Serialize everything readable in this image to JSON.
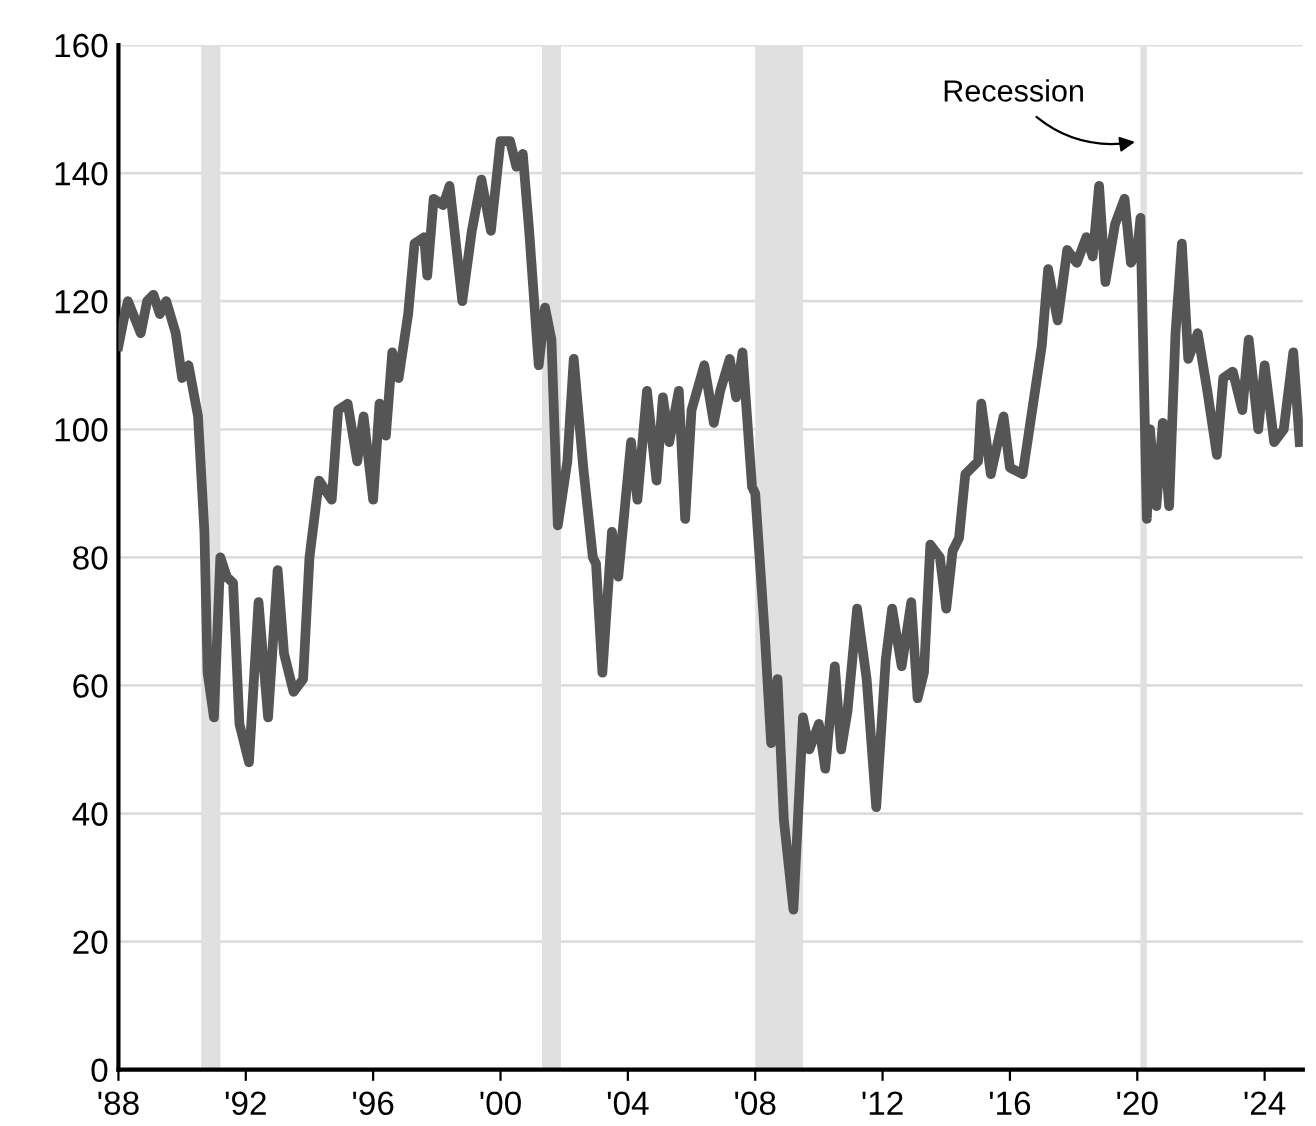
{
  "chart_data": {
    "type": "line",
    "x": [
      1988.0,
      1988.2,
      1988.3,
      1988.7,
      1988.9,
      1989.1,
      1989.3,
      1989.5,
      1989.8,
      1990.0,
      1990.2,
      1990.5,
      1990.7,
      1990.8,
      1991.0,
      1991.2,
      1991.4,
      1991.6,
      1991.8,
      1992.1,
      1992.4,
      1992.7,
      1993.0,
      1993.2,
      1993.5,
      1993.8,
      1994.0,
      1994.3,
      1994.7,
      1994.9,
      1995.2,
      1995.5,
      1995.7,
      1996.0,
      1996.2,
      1996.4,
      1996.6,
      1996.8,
      1997.1,
      1997.3,
      1997.6,
      1997.7,
      1997.9,
      1998.2,
      1998.4,
      1998.8,
      1999.1,
      1999.4,
      1999.7,
      2000.0,
      2000.3,
      2000.5,
      2000.7,
      2000.9,
      2001.2,
      2001.4,
      2001.6,
      2001.8,
      2002.1,
      2002.3,
      2002.6,
      2002.9,
      2003.0,
      2003.2,
      2003.5,
      2003.7,
      2004.1,
      2004.3,
      2004.6,
      2004.9,
      2005.1,
      2005.3,
      2005.6,
      2005.8,
      2006.0,
      2006.4,
      2006.7,
      2006.9,
      2007.2,
      2007.4,
      2007.6,
      2007.9,
      2008.0,
      2008.3,
      2008.5,
      2008.7,
      2008.9,
      2009.2,
      2009.5,
      2009.7,
      2010.0,
      2010.2,
      2010.5,
      2010.7,
      2010.9,
      2011.2,
      2011.5,
      2011.8,
      2012.1,
      2012.3,
      2012.6,
      2012.9,
      2013.1,
      2013.3,
      2013.5,
      2013.8,
      2014.0,
      2014.2,
      2014.4,
      2014.6,
      2015.0,
      2015.1,
      2015.4,
      2015.8,
      2016.0,
      2016.4,
      2016.7,
      2017.0,
      2017.2,
      2017.5,
      2017.8,
      2018.1,
      2018.4,
      2018.6,
      2018.8,
      2019.0,
      2019.3,
      2019.6,
      2019.8,
      2020.0,
      2020.1,
      2020.3,
      2020.4,
      2020.6,
      2020.8,
      2021.0,
      2021.2,
      2021.4,
      2021.6,
      2021.9,
      2022.2,
      2022.5,
      2022.7,
      2023.0,
      2023.3,
      2023.5,
      2023.8,
      2024.0,
      2024.3,
      2024.6,
      2024.9,
      2025.1
    ],
    "series": [
      {
        "color": "#555555",
        "values": [
          113,
          118,
          120,
          115,
          120,
          121,
          118,
          120,
          115,
          108,
          110,
          102,
          84,
          62,
          55,
          80,
          77,
          76,
          54,
          48,
          73,
          55,
          78,
          65,
          59,
          61,
          80,
          92,
          89,
          103,
          104,
          95,
          102,
          89,
          104,
          99,
          112,
          108,
          118,
          129,
          130,
          124,
          136,
          135,
          138,
          120,
          131,
          139,
          131,
          145,
          145,
          141,
          143,
          131,
          110,
          119,
          114,
          85,
          95,
          111,
          94,
          80,
          79,
          62,
          84,
          77,
          98,
          89,
          106,
          92,
          105,
          98,
          106,
          86,
          103,
          110,
          101,
          106,
          111,
          105,
          112,
          91,
          90,
          68,
          51,
          61,
          39,
          25,
          55,
          50,
          54,
          47,
          63,
          50,
          56,
          72,
          61,
          41,
          64,
          72,
          63,
          73,
          58,
          62,
          82,
          80,
          72,
          81,
          83,
          93,
          95,
          104,
          93,
          102,
          94,
          93,
          103,
          113,
          125,
          117,
          128,
          126,
          130,
          127,
          138,
          123,
          132,
          136,
          126,
          128,
          133,
          86,
          100,
          88,
          101,
          88,
          115,
          129,
          111,
          115,
          106,
          96,
          108,
          109,
          103,
          114,
          100,
          110,
          98,
          100,
          112,
          98
        ]
      }
    ],
    "xlim": [
      1988,
      2025.2
    ],
    "xticks": [
      {
        "value": 1988,
        "label": "'88"
      },
      {
        "value": 1992,
        "label": "'92"
      },
      {
        "value": 1996,
        "label": "'96"
      },
      {
        "value": 2000,
        "label": "'00"
      },
      {
        "value": 2004,
        "label": "'04"
      },
      {
        "value": 2008,
        "label": "'08"
      },
      {
        "value": 2012,
        "label": "'12"
      },
      {
        "value": 2016,
        "label": "'16"
      },
      {
        "value": 2020,
        "label": "'20"
      },
      {
        "value": 2024,
        "label": "'24"
      }
    ],
    "ylim": [
      0,
      160
    ],
    "yticks": [
      0,
      20,
      40,
      60,
      80,
      100,
      120,
      140,
      160
    ],
    "grid": "y",
    "line_style": "solid",
    "marker": "none",
    "bands": [
      {
        "axis": "x",
        "from": 1990.6,
        "to": 1991.2,
        "color": "#e0e0e0"
      },
      {
        "axis": "x",
        "from": 2001.3,
        "to": 2001.9,
        "color": "#e0e0e0"
      },
      {
        "axis": "x",
        "from": 2008.0,
        "to": 2009.5,
        "color": "#e0e0e0"
      },
      {
        "axis": "x",
        "from": 2020.1,
        "to": 2020.3,
        "color": "#e0e0e0"
      }
    ],
    "annotations": [
      {
        "text": "Recession",
        "x": 2020.1,
        "y": 145
      }
    ]
  }
}
